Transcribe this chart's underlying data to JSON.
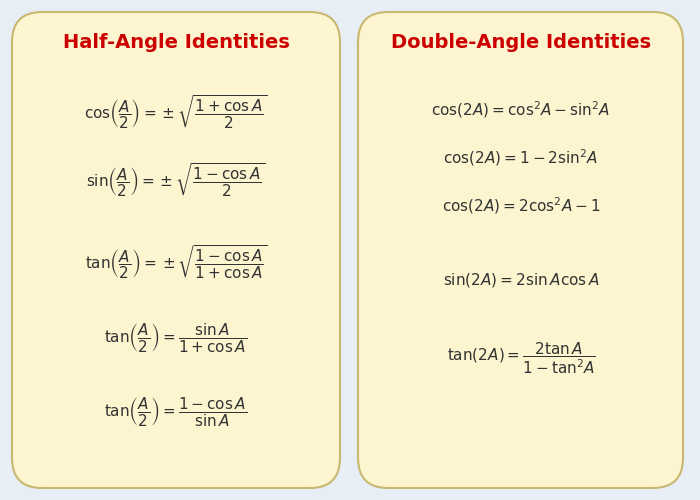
{
  "bg_color": "#e8eef5",
  "box_color": "#fdf5d0",
  "box_edge_color": "#c8b870",
  "title_color": "#cc0000",
  "formula_color": "#333333",
  "left_title": "Half-Angle Identities",
  "right_title": "Double-Angle Identities",
  "title_fontsize": 14,
  "formula_fontsize": 11,
  "figsize": [
    7.0,
    5.0
  ],
  "dpi": 100
}
